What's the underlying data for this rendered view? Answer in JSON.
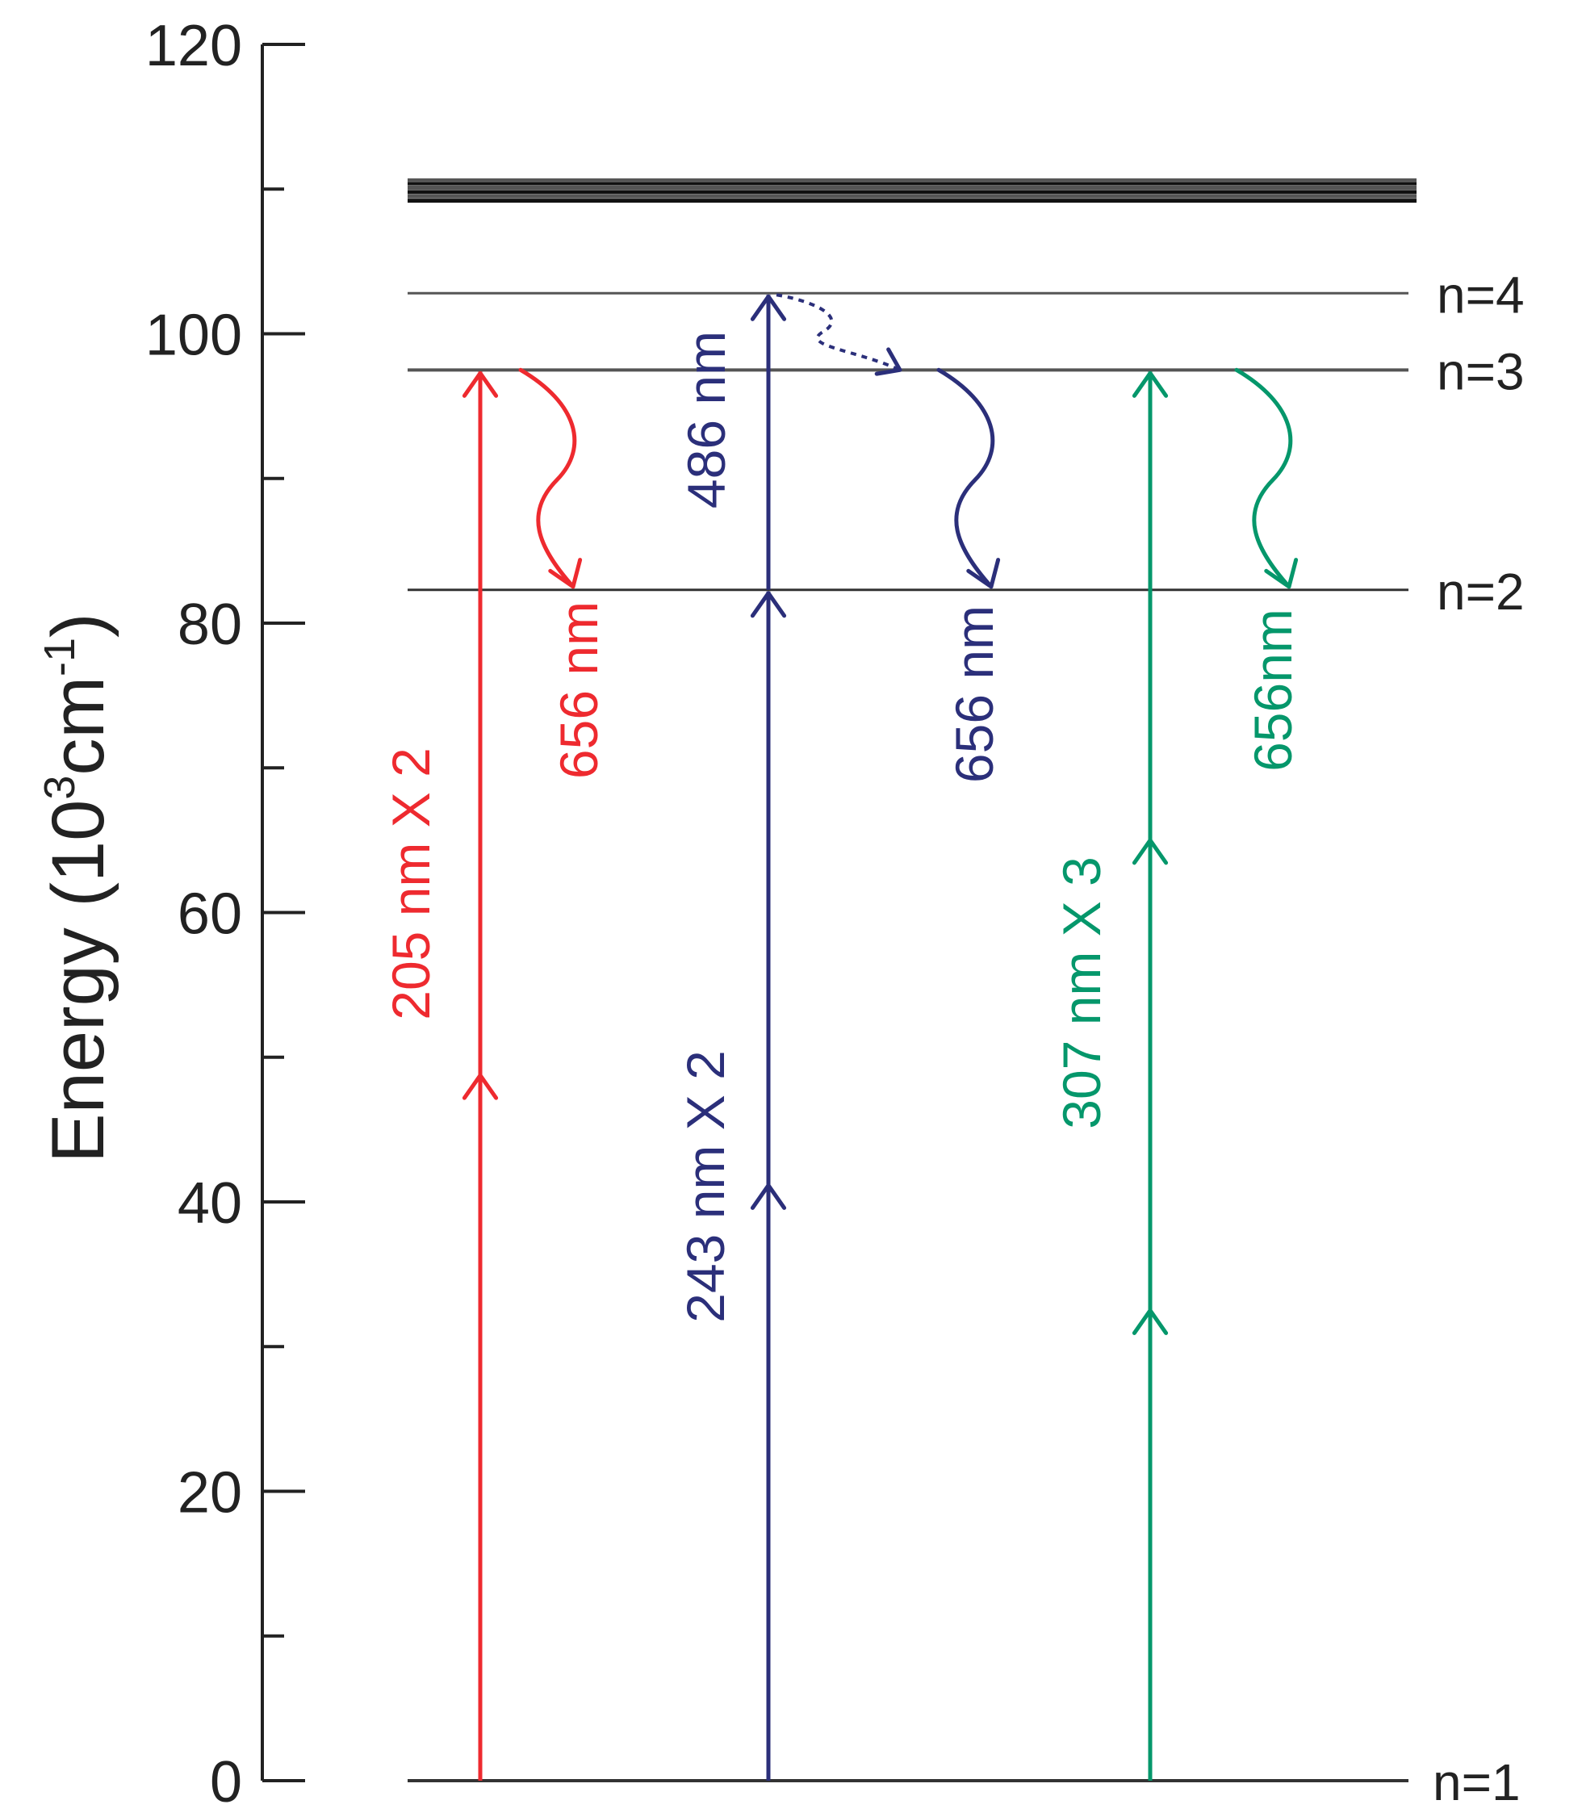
{
  "axis": {
    "label_main": "Energy (10",
    "label_sup1": "3",
    "label_mid": "cm",
    "label_sup2": "-1",
    "label_end": ")",
    "range": [
      0,
      120
    ],
    "ticks": [
      "0",
      "20",
      "40",
      "60",
      "80",
      "100",
      "120"
    ],
    "minor_step": 10
  },
  "levels": [
    {
      "label": "n=1",
      "energy": 0
    },
    {
      "label": "n=2",
      "energy": 82.3
    },
    {
      "label": "n=3",
      "energy": 97.5
    },
    {
      "label": "n=4",
      "energy": 102.8
    }
  ],
  "continuum": {
    "energies": [
      109.2,
      109.5,
      109.8,
      110.1,
      110.4,
      110.6
    ]
  },
  "colors": {
    "red": "#ee2a2f",
    "blue": "#2b2f7a",
    "green": "#05976b",
    "axis": "#222222",
    "level": "#333333"
  },
  "schemes": [
    {
      "color_key": "red",
      "excitation_label": "205 nm X 2",
      "excitation_from": 0,
      "excitation_to": 97.5,
      "photon_steps": 2,
      "emission_label": "656 nm",
      "emission_from": 97.5,
      "emission_to": 82.3
    },
    {
      "color_key": "blue",
      "excitation_label": "243 nm X 2",
      "excitation_from": 0,
      "excitation_to": 82.3,
      "photon_steps": 2,
      "second_label": "486 nm",
      "second_from": 82.3,
      "second_to": 102.8,
      "relax_from": 102.8,
      "relax_to": 97.5,
      "emission_label": "656 nm",
      "emission_from": 97.5,
      "emission_to": 82.3
    },
    {
      "color_key": "green",
      "excitation_label": "307 nm X 3",
      "excitation_from": 0,
      "excitation_to": 97.5,
      "photon_steps": 3,
      "emission_label": "656nm",
      "emission_from": 97.5,
      "emission_to": 82.3
    }
  ]
}
